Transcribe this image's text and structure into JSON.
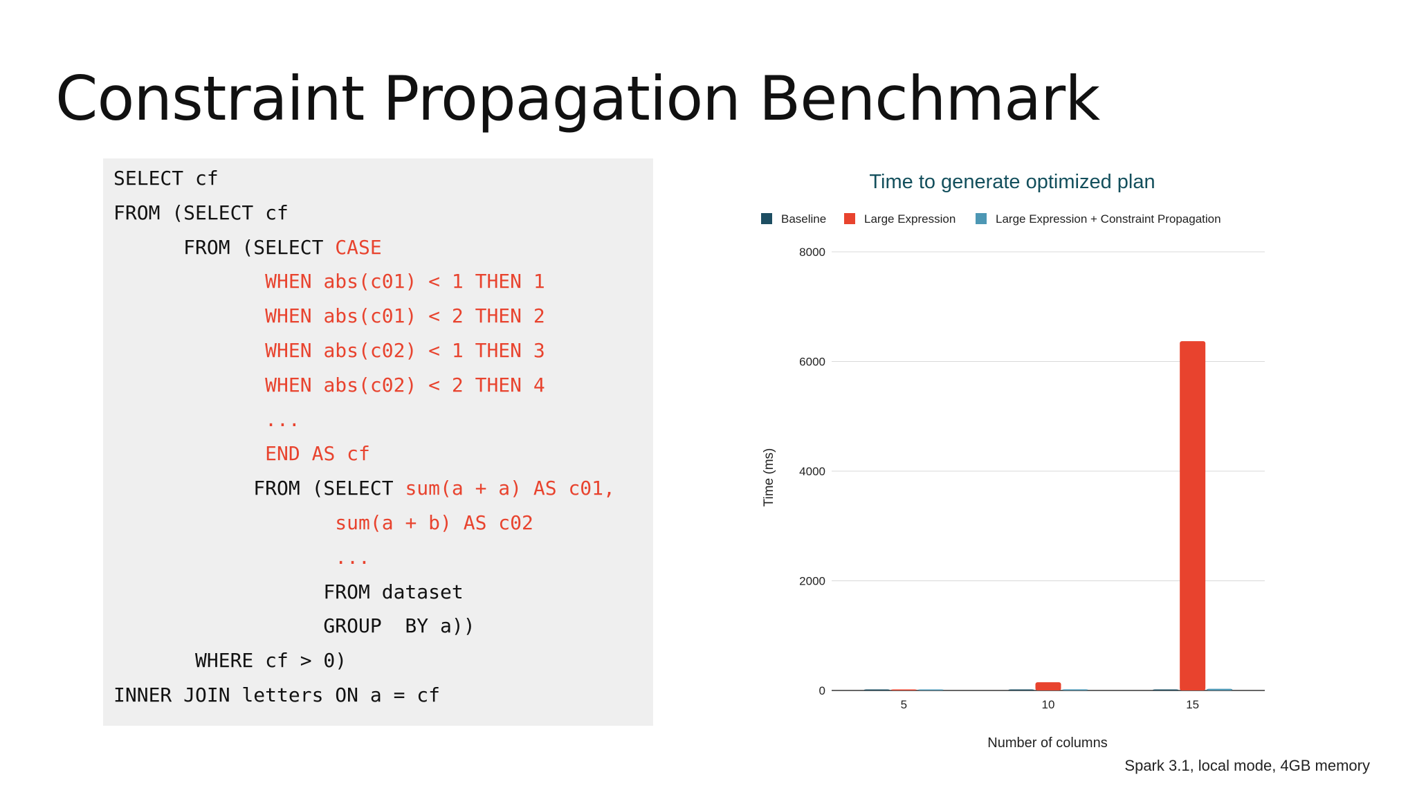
{
  "slide": {
    "title": "Constraint Propagation Benchmark",
    "caption": "Spark 3.1, local mode, 4GB memory"
  },
  "code": {
    "lines": [
      {
        "segments": [
          {
            "text": "SELECT cf",
            "color": "black"
          }
        ]
      },
      {
        "segments": [
          {
            "text": "FROM (SELECT cf",
            "color": "black"
          }
        ]
      },
      {
        "segments": [
          {
            "text": "      FROM (SELECT ",
            "color": "black"
          },
          {
            "text": "CASE",
            "color": "red"
          }
        ]
      },
      {
        "segments": [
          {
            "text": "             ",
            "color": "black"
          },
          {
            "text": "WHEN abs(c01) < 1 THEN 1",
            "color": "red"
          }
        ]
      },
      {
        "segments": [
          {
            "text": "             ",
            "color": "black"
          },
          {
            "text": "WHEN abs(c01) < 2 THEN 2",
            "color": "red"
          }
        ]
      },
      {
        "segments": [
          {
            "text": "             ",
            "color": "black"
          },
          {
            "text": "WHEN abs(c02) < 1 THEN 3",
            "color": "red"
          }
        ]
      },
      {
        "segments": [
          {
            "text": "             ",
            "color": "black"
          },
          {
            "text": "WHEN abs(c02) < 2 THEN 4",
            "color": "red"
          }
        ]
      },
      {
        "segments": [
          {
            "text": "             ",
            "color": "black"
          },
          {
            "text": "...",
            "color": "red"
          }
        ]
      },
      {
        "segments": [
          {
            "text": "             ",
            "color": "black"
          },
          {
            "text": "END AS cf",
            "color": "red"
          }
        ]
      },
      {
        "segments": [
          {
            "text": "            FROM (SELECT ",
            "color": "black"
          },
          {
            "text": "sum(a + a) AS c01,",
            "color": "red"
          }
        ]
      },
      {
        "segments": [
          {
            "text": "                   ",
            "color": "black"
          },
          {
            "text": "sum(a + b) AS c02",
            "color": "red"
          }
        ]
      },
      {
        "segments": [
          {
            "text": "                   ",
            "color": "black"
          },
          {
            "text": "...",
            "color": "red"
          }
        ]
      },
      {
        "segments": [
          {
            "text": "                  FROM dataset",
            "color": "black"
          }
        ]
      },
      {
        "segments": [
          {
            "text": "                  GROUP  BY a))",
            "color": "black"
          }
        ]
      },
      {
        "segments": [
          {
            "text": "       WHERE cf > 0)",
            "color": "black"
          }
        ]
      },
      {
        "segments": [
          {
            "text": "INNER JOIN letters ON a = cf",
            "color": "black"
          }
        ]
      }
    ]
  },
  "colors": {
    "code_red": "#e8432e",
    "title_color": "#134f5c",
    "baseline": "#1d4e62",
    "large_expression": "#e8432e",
    "large_expression_cp": "#4d97b4"
  },
  "chart_data": {
    "type": "bar",
    "title": "Time to generate optimized plan",
    "xlabel": "Number of columns",
    "ylabel": "Time (ms)",
    "categories": [
      "5",
      "10",
      "15"
    ],
    "series": [
      {
        "name": "Baseline",
        "values": [
          3,
          5,
          8
        ]
      },
      {
        "name": "Large Expression",
        "values": [
          10,
          150,
          6370
        ]
      },
      {
        "name": "Large Expression + Constraint Propagation",
        "values": [
          5,
          20,
          30
        ]
      }
    ],
    "ylim": [
      0,
      8000
    ],
    "yticks": [
      "0",
      "2000",
      "4000",
      "6000",
      "8000"
    ],
    "grid": true,
    "legend_position": "top"
  }
}
